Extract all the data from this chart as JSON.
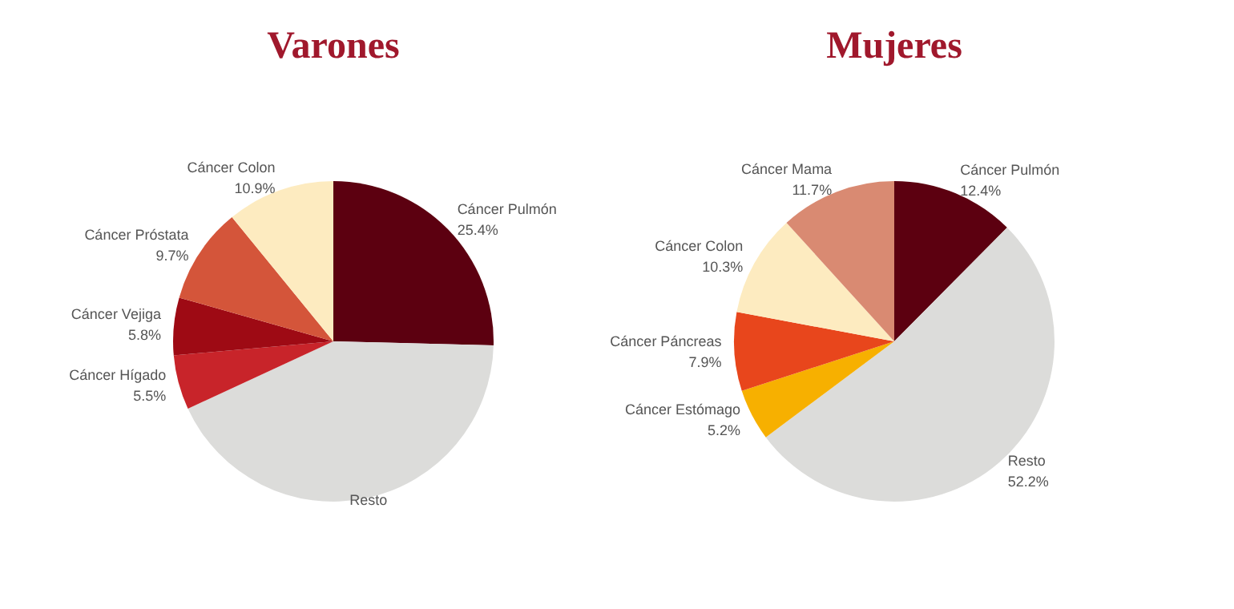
{
  "chart_data": [
    {
      "type": "pie",
      "title": "Varones",
      "categories": [
        "Cáncer Pulmón",
        "Resto",
        "Cáncer Hígado",
        "Cáncer Vejiga",
        "Cáncer Próstata",
        "Cáncer Colon"
      ],
      "values": [
        25.4,
        42.7,
        5.5,
        5.8,
        9.7,
        10.9
      ],
      "value_labels": [
        "25.4%",
        null,
        "5.5%",
        "5.8%",
        "9.7%",
        "10.9%"
      ],
      "colors": [
        "#5c0010",
        "#dcdcda",
        "#c8242a",
        "#9e0a14",
        "#d4553a",
        "#fdebc0"
      ]
    },
    {
      "type": "pie",
      "title": "Mujeres",
      "categories": [
        "Cáncer Pulmón",
        "Resto",
        "Cáncer Estómago",
        "Cáncer Páncreas",
        "Cáncer Colon",
        "Cáncer Mama"
      ],
      "values": [
        12.4,
        52.2,
        5.2,
        7.9,
        10.3,
        11.7
      ],
      "value_labels": [
        "12.4%",
        "52.2%",
        "5.2%",
        "7.9%",
        "10.3%",
        "11.7%"
      ],
      "colors": [
        "#5c0010",
        "#dcdcda",
        "#f7b000",
        "#e8461c",
        "#fdebc0",
        "#d98a72"
      ]
    }
  ]
}
